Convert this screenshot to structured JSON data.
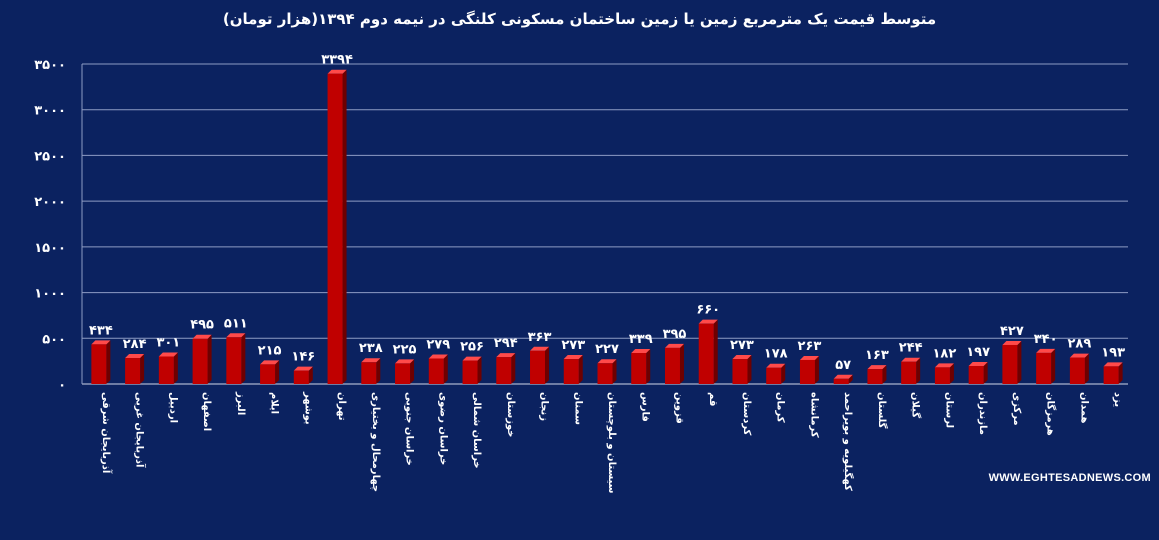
{
  "chart_data": {
    "type": "bar",
    "title": "متوسط قیمت یک مترمربع زمین یا زمین ساختمان مسکونی کلنگی در نیمه دوم ۱۳۹۴(هزار تومان)",
    "xlabel": "",
    "ylabel": "",
    "ylim": [
      0,
      3500
    ],
    "yticks": [
      0,
      500,
      1000,
      1500,
      2000,
      2500,
      3000,
      3500
    ],
    "ytick_labels": [
      "۰",
      "۵۰۰",
      "۱۰۰۰",
      "۱۵۰۰",
      "۲۰۰۰",
      "۲۵۰۰",
      "۳۰۰۰",
      "۳۵۰۰"
    ],
    "grid": true,
    "legend": "none",
    "bar_color": "#c00000",
    "categories": [
      "آذربایجان شرقی",
      "آذربایجان غربی",
      "اردبیل",
      "اصفهان",
      "البرز",
      "ایلام",
      "بوشهر",
      "تهران",
      "چهارمحال و بختیاری",
      "خراسان جنوبی",
      "خراسان رضوی",
      "خراسان شمالی",
      "خوزستان",
      "زنجان",
      "سمنان",
      "سیستان و بلوچستان",
      "فارس",
      "قزوین",
      "قم",
      "کردستان",
      "کرمان",
      "کرمانشاه",
      "کهگیلویه و بویراحمد",
      "گلستان",
      "گیلان",
      "لرستان",
      "مازندران",
      "مرکزی",
      "هرمزگان",
      "همدان",
      "یزد"
    ],
    "values": [
      434,
      284,
      301,
      495,
      511,
      215,
      146,
      3394,
      238,
      225,
      279,
      256,
      294,
      363,
      273,
      227,
      339,
      395,
      660,
      273,
      178,
      263,
      57,
      163,
      244,
      182,
      197,
      427,
      340,
      289,
      193
    ],
    "value_labels": [
      "۴۳۴",
      "۲۸۴",
      "۳۰۱",
      "۴۹۵",
      "۵۱۱",
      "۲۱۵",
      "۱۴۶",
      "۳۳۹۴",
      "۲۳۸",
      "۲۲۵",
      "۲۷۹",
      "۲۵۶",
      "۲۹۴",
      "۳۶۳",
      "۲۷۳",
      "۲۲۷",
      "۳۳۹",
      "۳۹۵",
      "۶۶۰",
      "۲۷۳",
      "۱۷۸",
      "۲۶۳",
      "۵۷",
      "۱۶۳",
      "۲۴۴",
      "۱۸۲",
      "۱۹۷",
      "۴۲۷",
      "۳۴۰",
      "۲۸۹",
      "۱۹۳"
    ]
  },
  "watermark": "WWW.EGHTESADNEWS.COM"
}
